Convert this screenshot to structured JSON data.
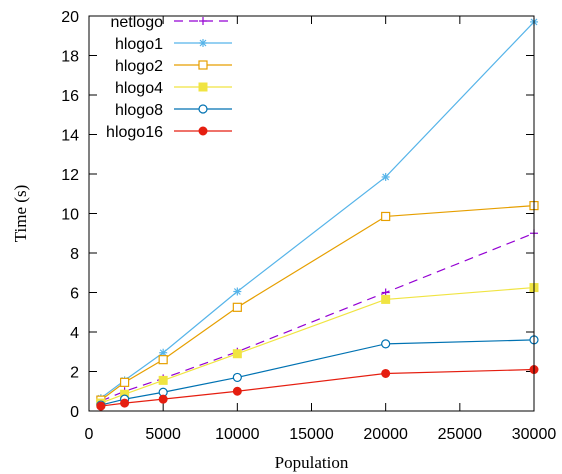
{
  "chart_data": {
    "type": "line",
    "xlabel": "Population",
    "ylabel": "Time (s)",
    "xlim": [
      0,
      30000
    ],
    "ylim": [
      0,
      20
    ],
    "xticks": [
      "0",
      "5000",
      "10000",
      "15000",
      "20000",
      "25000",
      "30000"
    ],
    "yticks": [
      "0",
      "2",
      "4",
      "6",
      "8",
      "10",
      "12",
      "14",
      "16",
      "18",
      "20"
    ],
    "grid": false,
    "legend_position": "top-left",
    "x": [
      800,
      2400,
      5000,
      10000,
      20000,
      30000
    ],
    "series": [
      {
        "name": "netlogo",
        "color": "#9400d3",
        "marker": "plus",
        "dashed": true,
        "values": [
          0.5,
          1.0,
          1.65,
          3.0,
          6.0,
          9.0
        ]
      },
      {
        "name": "hlogo1",
        "color": "#56b4e9",
        "marker": "star",
        "dashed": false,
        "values": [
          0.65,
          1.55,
          2.95,
          6.05,
          11.85,
          19.7
        ]
      },
      {
        "name": "hlogo2",
        "color": "#e69f00",
        "marker": "open-square",
        "dashed": false,
        "values": [
          0.55,
          1.45,
          2.6,
          5.25,
          9.85,
          10.4
        ]
      },
      {
        "name": "hlogo4",
        "color": "#f0e442",
        "marker": "filled-square",
        "dashed": false,
        "values": [
          0.4,
          0.85,
          1.55,
          2.9,
          5.65,
          6.25
        ]
      },
      {
        "name": "hlogo8",
        "color": "#0072b2",
        "marker": "open-circle",
        "dashed": false,
        "values": [
          0.3,
          0.6,
          0.95,
          1.7,
          3.4,
          3.6
        ]
      },
      {
        "name": "hlogo16",
        "color": "#e51e10",
        "marker": "filled-circle",
        "dashed": false,
        "values": [
          0.25,
          0.4,
          0.6,
          1.0,
          1.9,
          2.1
        ]
      }
    ]
  }
}
